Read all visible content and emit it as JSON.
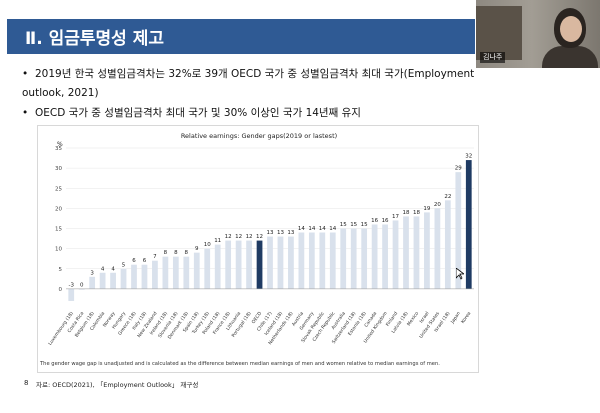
{
  "slide": {
    "title": "Ⅱ. 임금투명성 제고",
    "bullets": [
      {
        "text_line1": "2019년 한국 성별임금격차는 32%로 39개 OECD 국가 중 성별임금격차 최대 국가(Employment",
        "text_line2": "outlook, 2021)"
      },
      {
        "text_line1": "OECD 국가 중 성별임금격차 최대 국가 및 30% 이상인 국가 14년째 유지"
      }
    ],
    "bullet_symbol": "•",
    "note": "The gender wage gap is unadjusted and is calculated as the difference between median earnings of men and women relative to median earnings of men.",
    "page_number": "8",
    "source": "자료: OECD(2021), 「Employment Outlook」 재구성"
  },
  "webcam": {
    "name_label": "김나주"
  },
  "colors": {
    "title_bar": "#2f5a94",
    "bar_default": "#d9e1ec",
    "bar_highlight": "#1f3b63"
  },
  "chart_data": {
    "type": "bar",
    "title": "Relative earnings: Gender gaps(2019  or lastest)",
    "ylabel": "%",
    "ylim": [
      -5,
      35
    ],
    "yticks": [
      0,
      5,
      10,
      15,
      20,
      25,
      30,
      35
    ],
    "highlight": [
      "OECD",
      "Korea"
    ],
    "categories": [
      "Luxembourg (18)",
      "Costa Rica",
      "Belgium (18)",
      "Colombia",
      "Norway",
      "Hungary",
      "Greece (18)",
      "Italy (18)",
      "New Zealand",
      "Ireland (18)",
      "Slovenia (18)",
      "Denmark (18)",
      "Spain (18)",
      "Turkey (18)",
      "Poland (18)",
      "France (18)",
      "Lithuania",
      "Portugal (18)",
      "OECD",
      "Chile (17)",
      "Iceland (18)",
      "Netherlands (18)",
      "Austria",
      "Germany",
      "Slovak Republic",
      "Czech Republic",
      "Australia",
      "Switzerland (18)",
      "Estonia (18)",
      "Canada",
      "United Kingdom",
      "Finland",
      "Latvia (18)",
      "Mexico",
      "Israel",
      "United States",
      "Israel (18)",
      "Japan",
      "Korea"
    ],
    "values": [
      -3,
      0,
      3,
      4,
      4,
      5,
      6,
      6,
      7,
      8,
      8,
      8,
      9,
      10,
      11,
      12,
      12,
      12,
      12,
      13,
      13,
      13,
      14,
      14,
      14,
      14,
      15,
      15,
      15,
      16,
      16,
      17,
      18,
      18,
      19,
      20,
      22,
      29,
      32
    ]
  }
}
